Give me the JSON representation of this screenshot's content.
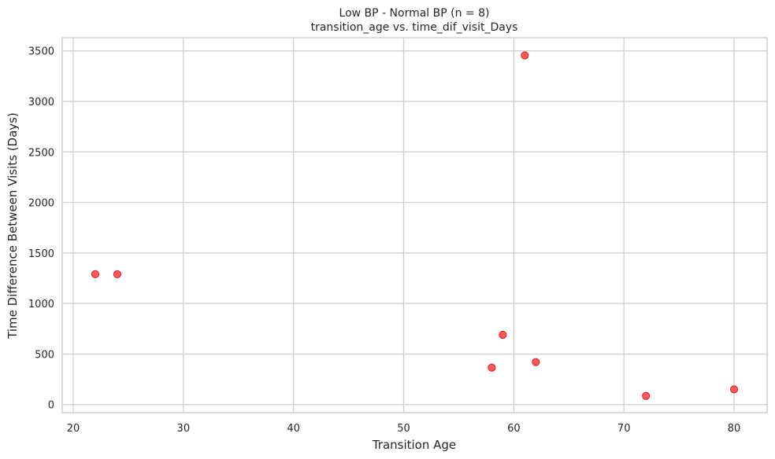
{
  "chart_data": {
    "type": "scatter",
    "title": "Low BP - Normal BP (n = 8)",
    "subtitle": "transition_age vs. time_dif_visit_Days",
    "xlabel": "Transition Age",
    "ylabel": "Time Difference Between Visits (Days)",
    "xlim": [
      19,
      83
    ],
    "ylim": [
      -80,
      3630
    ],
    "xticks": [
      20,
      30,
      40,
      50,
      60,
      70,
      80
    ],
    "yticks": [
      0,
      500,
      1000,
      1500,
      2000,
      2500,
      3000,
      3500
    ],
    "grid": true,
    "point_color": "#ff0000",
    "points": [
      {
        "x": 22,
        "y": 1290
      },
      {
        "x": 24,
        "y": 1290
      },
      {
        "x": 58,
        "y": 365
      },
      {
        "x": 59,
        "y": 690
      },
      {
        "x": 61,
        "y": 3455
      },
      {
        "x": 62,
        "y": 420
      },
      {
        "x": 72,
        "y": 85
      },
      {
        "x": 80,
        "y": 150
      }
    ]
  }
}
